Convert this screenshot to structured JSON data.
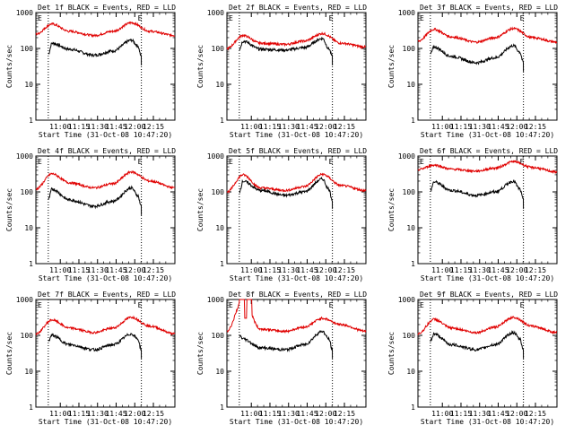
{
  "common": {
    "ylabel": "Counts/sec",
    "xlabel": "Start Time (31-Oct-08 10:47:20)",
    "xticks": [
      "11:00",
      "11:15",
      "11:30",
      "11:45",
      "12:00",
      "12:15"
    ],
    "yticks": [
      "1",
      "10",
      "100",
      "1000"
    ],
    "marker_E": "E",
    "colors": {
      "events": "#000000",
      "lld": "#e00000"
    }
  },
  "chart_data": [
    {
      "type": "line",
      "title": "Det 1f BLACK = Events, RED = LLD",
      "ylim": [
        1,
        1000
      ],
      "yscale": "log",
      "xlim_min": [
        -7,
        105
      ],
      "vlines_min": [
        3,
        78
      ],
      "x_min": [
        3,
        14,
        28,
        43,
        56,
        69,
        76,
        78
      ],
      "series": [
        {
          "name": "Events",
          "values": [
            70,
            140,
            95,
            65,
            85,
            170,
            120,
            60
          ],
          "x": [
            3,
            6,
            20,
            40,
            55,
            70,
            75,
            78
          ]
        },
        {
          "name": "LLD",
          "values": [
            250,
            480,
            300,
            230,
            300,
            520,
            300,
            230
          ],
          "x": [
            -7,
            6,
            20,
            40,
            55,
            70,
            85,
            105
          ]
        }
      ]
    },
    {
      "type": "line",
      "title": "Det 2f BLACK = Events, RED = LLD",
      "ylim": [
        1,
        1000
      ],
      "yscale": "log",
      "xlim_min": [
        -7,
        105
      ],
      "vlines_min": [
        3,
        78
      ],
      "series": [
        {
          "name": "Events",
          "values": [
            95,
            160,
            95,
            90,
            105,
            190,
            100,
            60
          ],
          "x": [
            3,
            6,
            20,
            40,
            55,
            70,
            75,
            78
          ]
        },
        {
          "name": "LLD",
          "values": [
            100,
            230,
            140,
            130,
            160,
            260,
            140,
            110
          ],
          "x": [
            -7,
            6,
            20,
            40,
            55,
            70,
            85,
            105
          ]
        }
      ]
    },
    {
      "type": "line",
      "title": "Det 3f BLACK = Events, RED = LLD",
      "ylim": [
        1,
        1000
      ],
      "yscale": "log",
      "xlim_min": [
        -7,
        105
      ],
      "vlines_min": [
        3,
        78
      ],
      "series": [
        {
          "name": "Events",
          "values": [
            70,
            110,
            60,
            40,
            55,
            120,
            80,
            40
          ],
          "x": [
            3,
            6,
            20,
            40,
            55,
            70,
            75,
            78
          ]
        },
        {
          "name": "LLD",
          "values": [
            160,
            340,
            210,
            150,
            200,
            360,
            200,
            150
          ],
          "x": [
            -7,
            6,
            20,
            40,
            55,
            70,
            85,
            105
          ]
        }
      ]
    },
    {
      "type": "line",
      "title": "Det 4f BLACK = Events, RED = LLD",
      "ylim": [
        1,
        1000
      ],
      "yscale": "log",
      "xlim_min": [
        -7,
        105
      ],
      "vlines_min": [
        3,
        78
      ],
      "series": [
        {
          "name": "Events",
          "values": [
            60,
            120,
            60,
            40,
            55,
            130,
            80,
            40
          ],
          "x": [
            3,
            6,
            20,
            40,
            55,
            70,
            75,
            78
          ]
        },
        {
          "name": "LLD",
          "values": [
            120,
            320,
            180,
            130,
            170,
            360,
            200,
            130
          ],
          "x": [
            -7,
            6,
            20,
            40,
            55,
            70,
            85,
            105
          ]
        }
      ]
    },
    {
      "type": "line",
      "title": "Det 5f BLACK = Events, RED = LLD",
      "ylim": [
        1,
        1000
      ],
      "yscale": "log",
      "xlim_min": [
        -7,
        105
      ],
      "vlines_min": [
        3,
        78
      ],
      "series": [
        {
          "name": "Events",
          "values": [
            100,
            200,
            110,
            80,
            100,
            230,
            120,
            60
          ],
          "x": [
            3,
            6,
            20,
            40,
            55,
            70,
            75,
            78
          ]
        },
        {
          "name": "LLD",
          "values": [
            100,
            300,
            130,
            110,
            140,
            310,
            150,
            110
          ],
          "x": [
            -7,
            6,
            20,
            40,
            55,
            70,
            85,
            105
          ]
        }
      ]
    },
    {
      "type": "line",
      "title": "Det 6f BLACK = Events, RED = LLD",
      "ylim": [
        1,
        1000
      ],
      "yscale": "log",
      "xlim_min": [
        -7,
        105
      ],
      "vlines_min": [
        3,
        78
      ],
      "series": [
        {
          "name": "Events",
          "values": [
            110,
            190,
            110,
            80,
            100,
            200,
            120,
            60
          ],
          "x": [
            3,
            6,
            20,
            40,
            55,
            70,
            75,
            78
          ]
        },
        {
          "name": "LLD",
          "values": [
            420,
            560,
            430,
            380,
            460,
            700,
            480,
            360
          ],
          "x": [
            -7,
            6,
            20,
            40,
            55,
            70,
            85,
            105
          ]
        }
      ]
    },
    {
      "type": "line",
      "title": "Det 7f BLACK = Events, RED = LLD",
      "ylim": [
        1,
        1000
      ],
      "yscale": "log",
      "xlim_min": [
        -7,
        105
      ],
      "vlines_min": [
        3,
        78
      ],
      "series": [
        {
          "name": "Events",
          "values": [
            70,
            100,
            55,
            40,
            55,
            110,
            80,
            40
          ],
          "x": [
            3,
            6,
            20,
            40,
            55,
            70,
            75,
            78
          ]
        },
        {
          "name": "LLD",
          "values": [
            110,
            270,
            160,
            120,
            160,
            320,
            180,
            110
          ],
          "x": [
            -7,
            6,
            20,
            40,
            55,
            70,
            85,
            105
          ]
        }
      ]
    },
    {
      "type": "line",
      "title": "Det 8f BLACK = Events, RED = LLD",
      "ylim": [
        1,
        1000
      ],
      "yscale": "log",
      "xlim_min": [
        -7,
        105
      ],
      "vlines_min": [
        3,
        78
      ],
      "series": [
        {
          "name": "Events",
          "values": [
            100,
            80,
            45,
            40,
            55,
            130,
            80,
            40
          ],
          "x": [
            3,
            6,
            20,
            40,
            55,
            70,
            75,
            78
          ]
        },
        {
          "name": "LLD",
          "values": [
            130,
            1000,
            150,
            130,
            170,
            300,
            200,
            130
          ],
          "x": [
            -7,
            6,
            20,
            40,
            55,
            70,
            85,
            105
          ]
        }
      ]
    },
    {
      "type": "line",
      "title": "Det 9f BLACK = Events, RED = LLD",
      "ylim": [
        1,
        1000
      ],
      "yscale": "log",
      "xlim_min": [
        -7,
        105
      ],
      "vlines_min": [
        3,
        78
      ],
      "series": [
        {
          "name": "Events",
          "values": [
            70,
            110,
            55,
            40,
            55,
            120,
            80,
            40
          ],
          "x": [
            3,
            6,
            20,
            40,
            55,
            70,
            75,
            78
          ]
        },
        {
          "name": "LLD",
          "values": [
            110,
            280,
            160,
            120,
            170,
            320,
            180,
            120
          ],
          "x": [
            -7,
            6,
            20,
            40,
            55,
            70,
            85,
            105
          ]
        }
      ]
    }
  ]
}
